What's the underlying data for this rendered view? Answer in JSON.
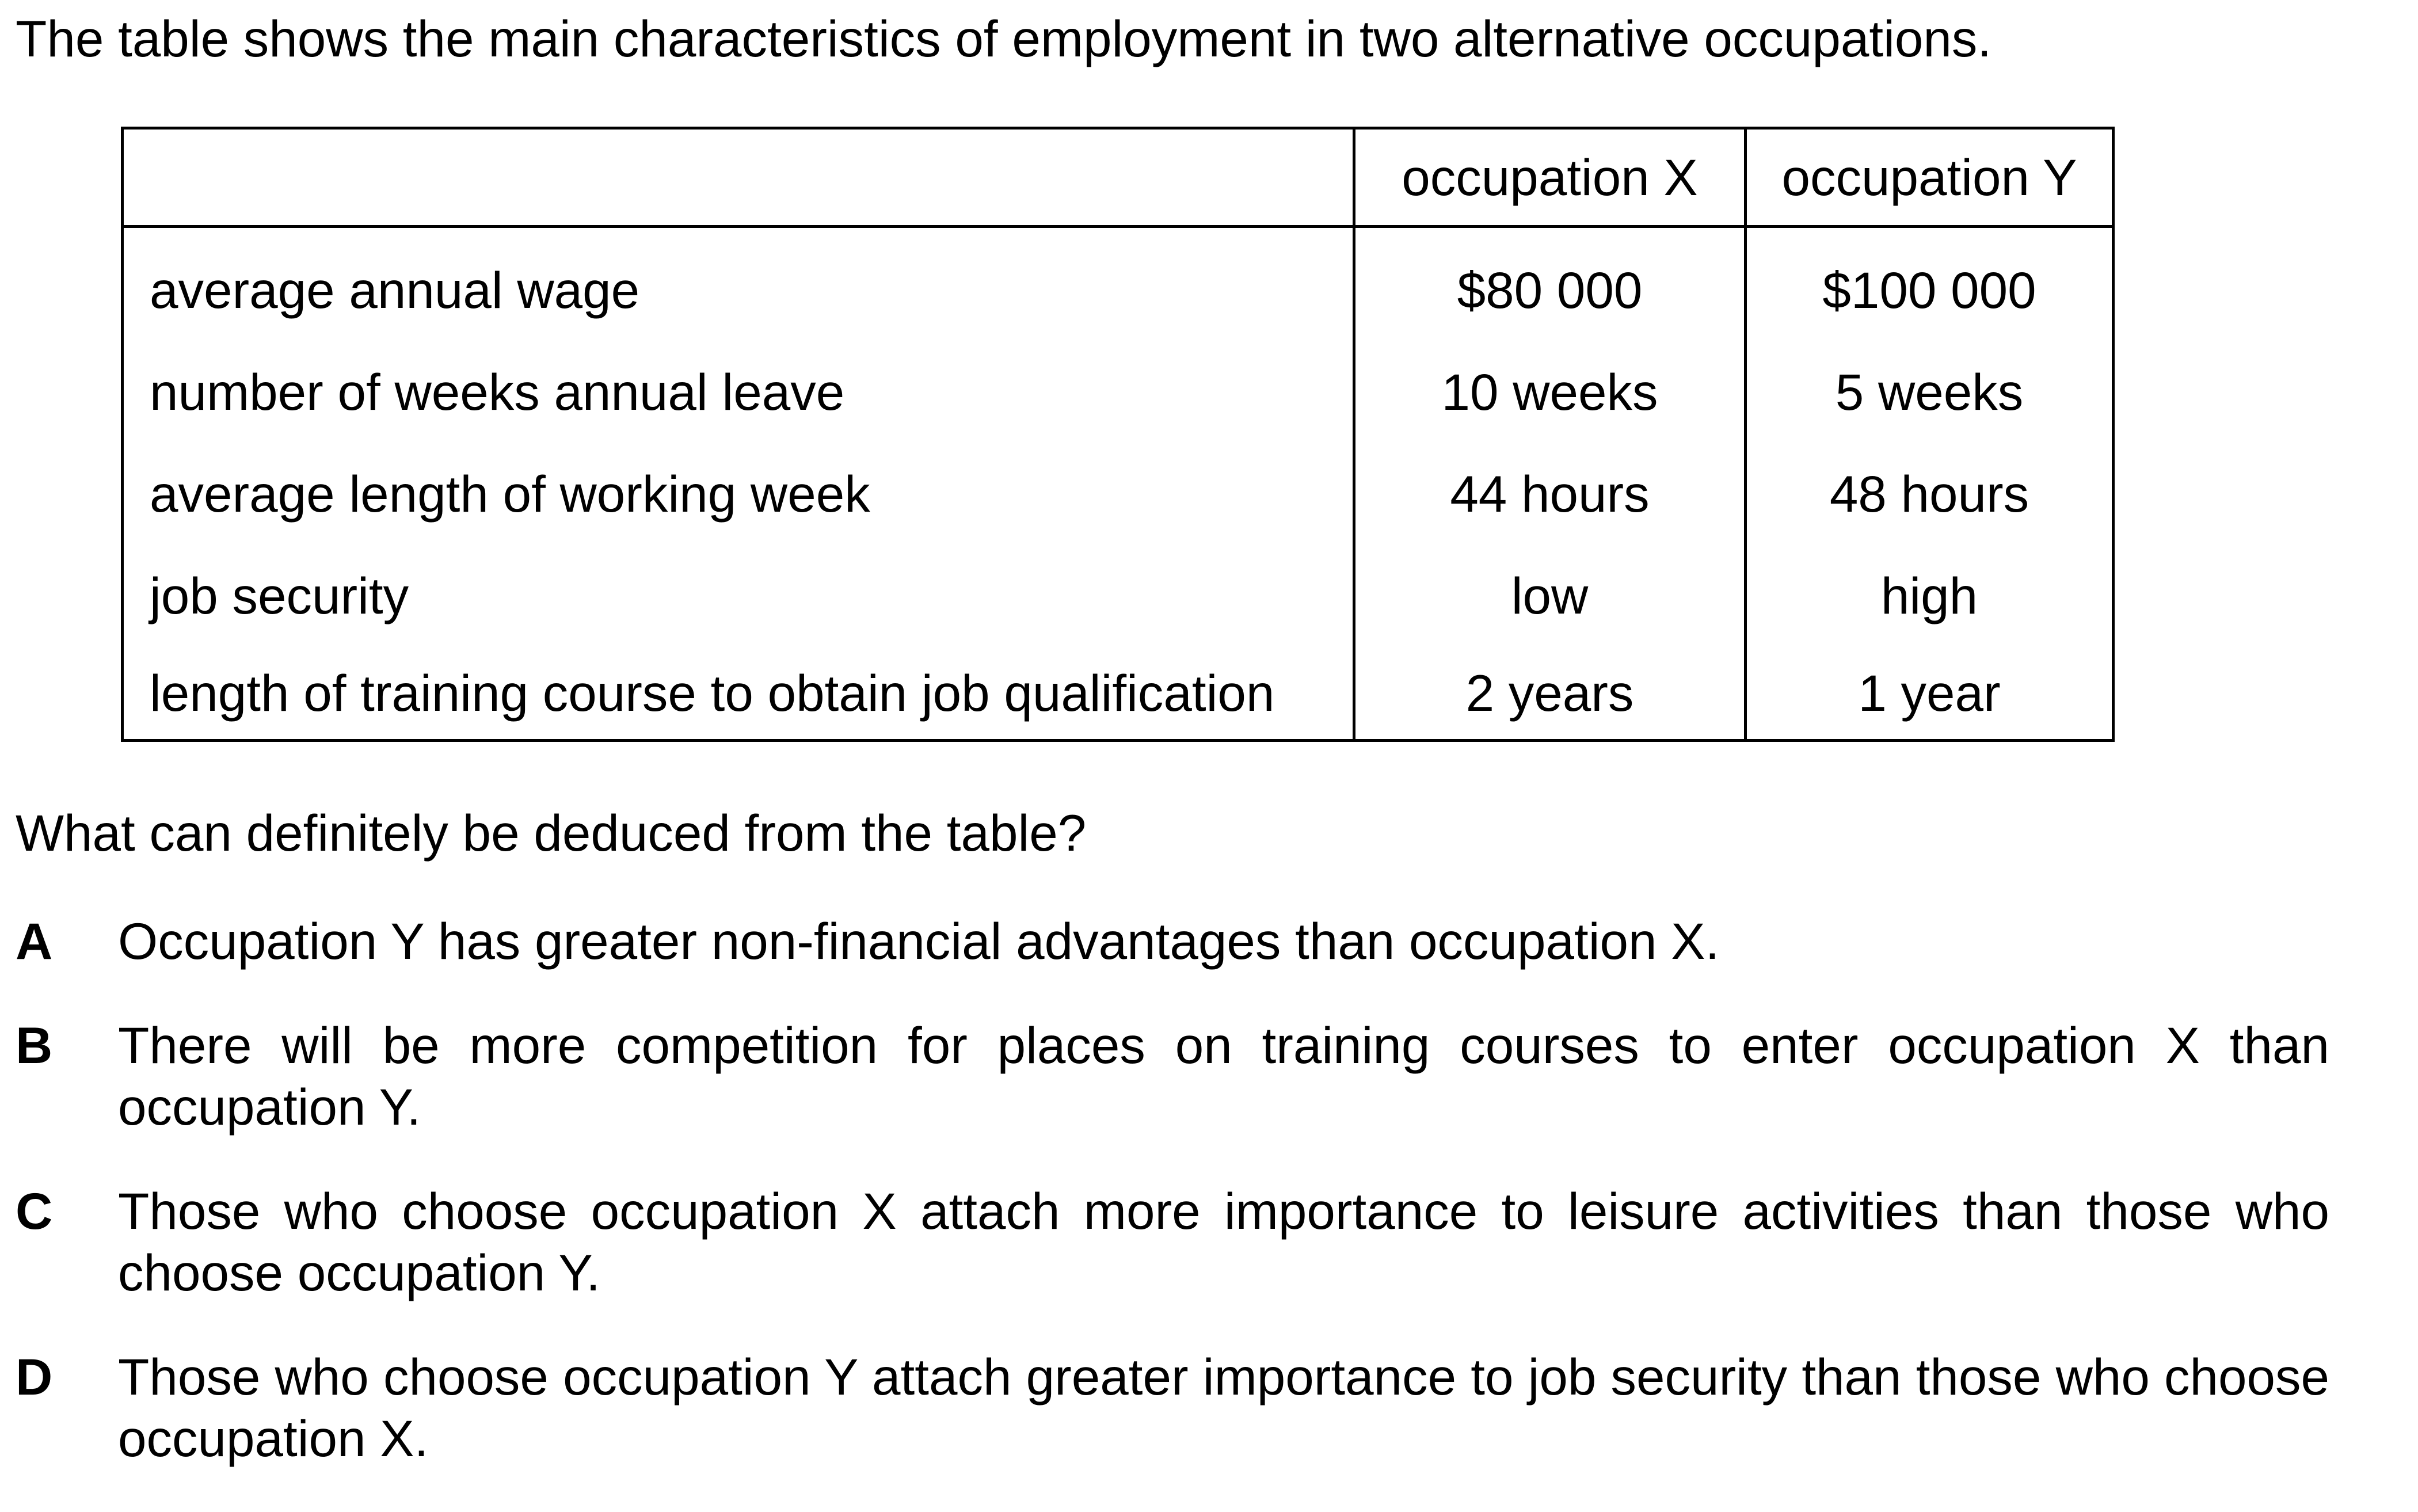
{
  "intro": "The table shows the main characteristics of employment in two alternative occupations.",
  "table": {
    "headers": [
      "",
      "occupation X",
      "occupation Y"
    ],
    "rows": [
      {
        "label": "average annual wage",
        "x": "$80 000",
        "y": "$100 000"
      },
      {
        "label": "number of weeks annual leave",
        "x": "10 weeks",
        "y": "5 weeks"
      },
      {
        "label": "average length of working week",
        "x": "44 hours",
        "y": "48 hours"
      },
      {
        "label": "job security",
        "x": "low",
        "y": "high"
      },
      {
        "label": "length of training course to obtain job qualification",
        "x": "2 years",
        "y": "1 year"
      }
    ]
  },
  "question": "What can definitely be deduced from the table?",
  "options": [
    {
      "letter": "A",
      "text": "Occupation Y has greater non-financial advantages than occupation X."
    },
    {
      "letter": "B",
      "text": "There will be more competition for places on training courses to enter occupation X than occupation Y."
    },
    {
      "letter": "C",
      "text": "Those who choose occupation X attach more importance to leisure activities than those who choose occupation Y."
    },
    {
      "letter": "D",
      "text": "Those who choose occupation Y attach greater importance to job security than those who choose occupation X."
    }
  ]
}
